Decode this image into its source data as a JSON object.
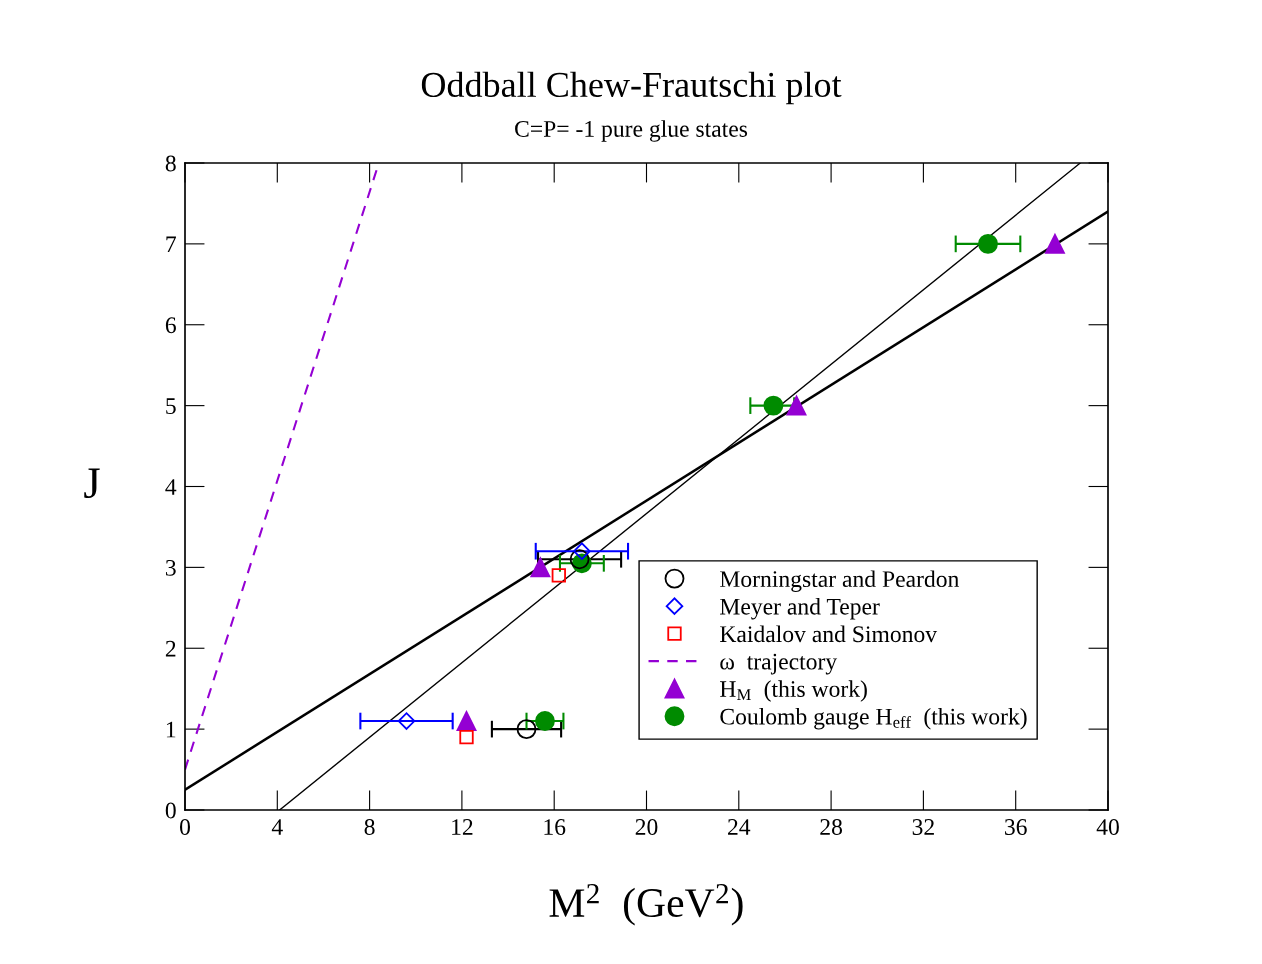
{
  "chart_data": {
    "type": "scatter",
    "title": "Oddball Chew-Frautschi plot",
    "subtitle": "C=P= -1 pure glue states",
    "xlabel": "M$^{2}$  (GeV$^{2}$)",
    "ylabel": "J",
    "xlim": [
      0,
      40
    ],
    "ylim": [
      0,
      8
    ],
    "xticks": [
      0,
      4,
      8,
      12,
      16,
      20,
      24,
      28,
      32,
      36,
      40
    ],
    "yticks": [
      0,
      1,
      2,
      3,
      4,
      5,
      6,
      7,
      8
    ],
    "grid": false,
    "legend": "bottom right",
    "series": [
      {
        "name": "Morningstar and Peardon",
        "marker": "circle",
        "color": "#000000",
        "x": [
          14.8,
          17.1
        ],
        "values": [
          1.0,
          3.1
        ],
        "xerrors": [
          [
            13.3,
            16.3
          ],
          [
            15.3,
            18.9
          ]
        ]
      },
      {
        "name": "Meyer and Teper",
        "marker": "diamond",
        "color": "#0000ff",
        "x": [
          9.6,
          17.2
        ],
        "values": [
          1.1,
          3.2
        ],
        "xerrors": [
          [
            7.6,
            11.6
          ],
          [
            15.2,
            19.2
          ]
        ]
      },
      {
        "name": "Kaidalov and Simonov",
        "marker": "square",
        "color": "#ff0000",
        "x": [
          12.2,
          16.2
        ],
        "values": [
          0.9,
          2.9
        ]
      },
      {
        "name": "ω  trajectory",
        "type": "line",
        "marker": "none",
        "line_style": "dashed",
        "color": "#9400d3",
        "x": [
          0,
          8.4
        ],
        "values": [
          0.5,
          8
        ]
      },
      {
        "name": "H$_{M}$  (this work)",
        "marker": "triangle",
        "color": "#9400d3",
        "x": [
          12.2,
          15.4,
          26.5,
          37.7
        ],
        "values": [
          1.1,
          3.0,
          5.0,
          7.0
        ]
      },
      {
        "name": "Coulomb gauge H$_{eff}$  (this work)",
        "marker": "circle",
        "color": "#008b00",
        "x": [
          15.6,
          17.2,
          25.5,
          34.8
        ],
        "values": [
          1.1,
          3.05,
          5.0,
          7.0
        ],
        "xerrors": [
          [
            14.8,
            16.4
          ],
          [
            16.25,
            18.15
          ],
          [
            24.5,
            26.4
          ],
          [
            33.4,
            36.2
          ]
        ]
      },
      {
        "type": "line",
        "marker": "none",
        "line_style": "solid",
        "color": "#000000",
        "x": [
          0,
          40
        ],
        "values": [
          0.25,
          7.4
        ]
      },
      {
        "type": "line",
        "marker": "none",
        "line_style": "solid",
        "color": "#000000",
        "x": [
          4.1,
          38.8
        ],
        "values": [
          0,
          8
        ]
      }
    ]
  }
}
